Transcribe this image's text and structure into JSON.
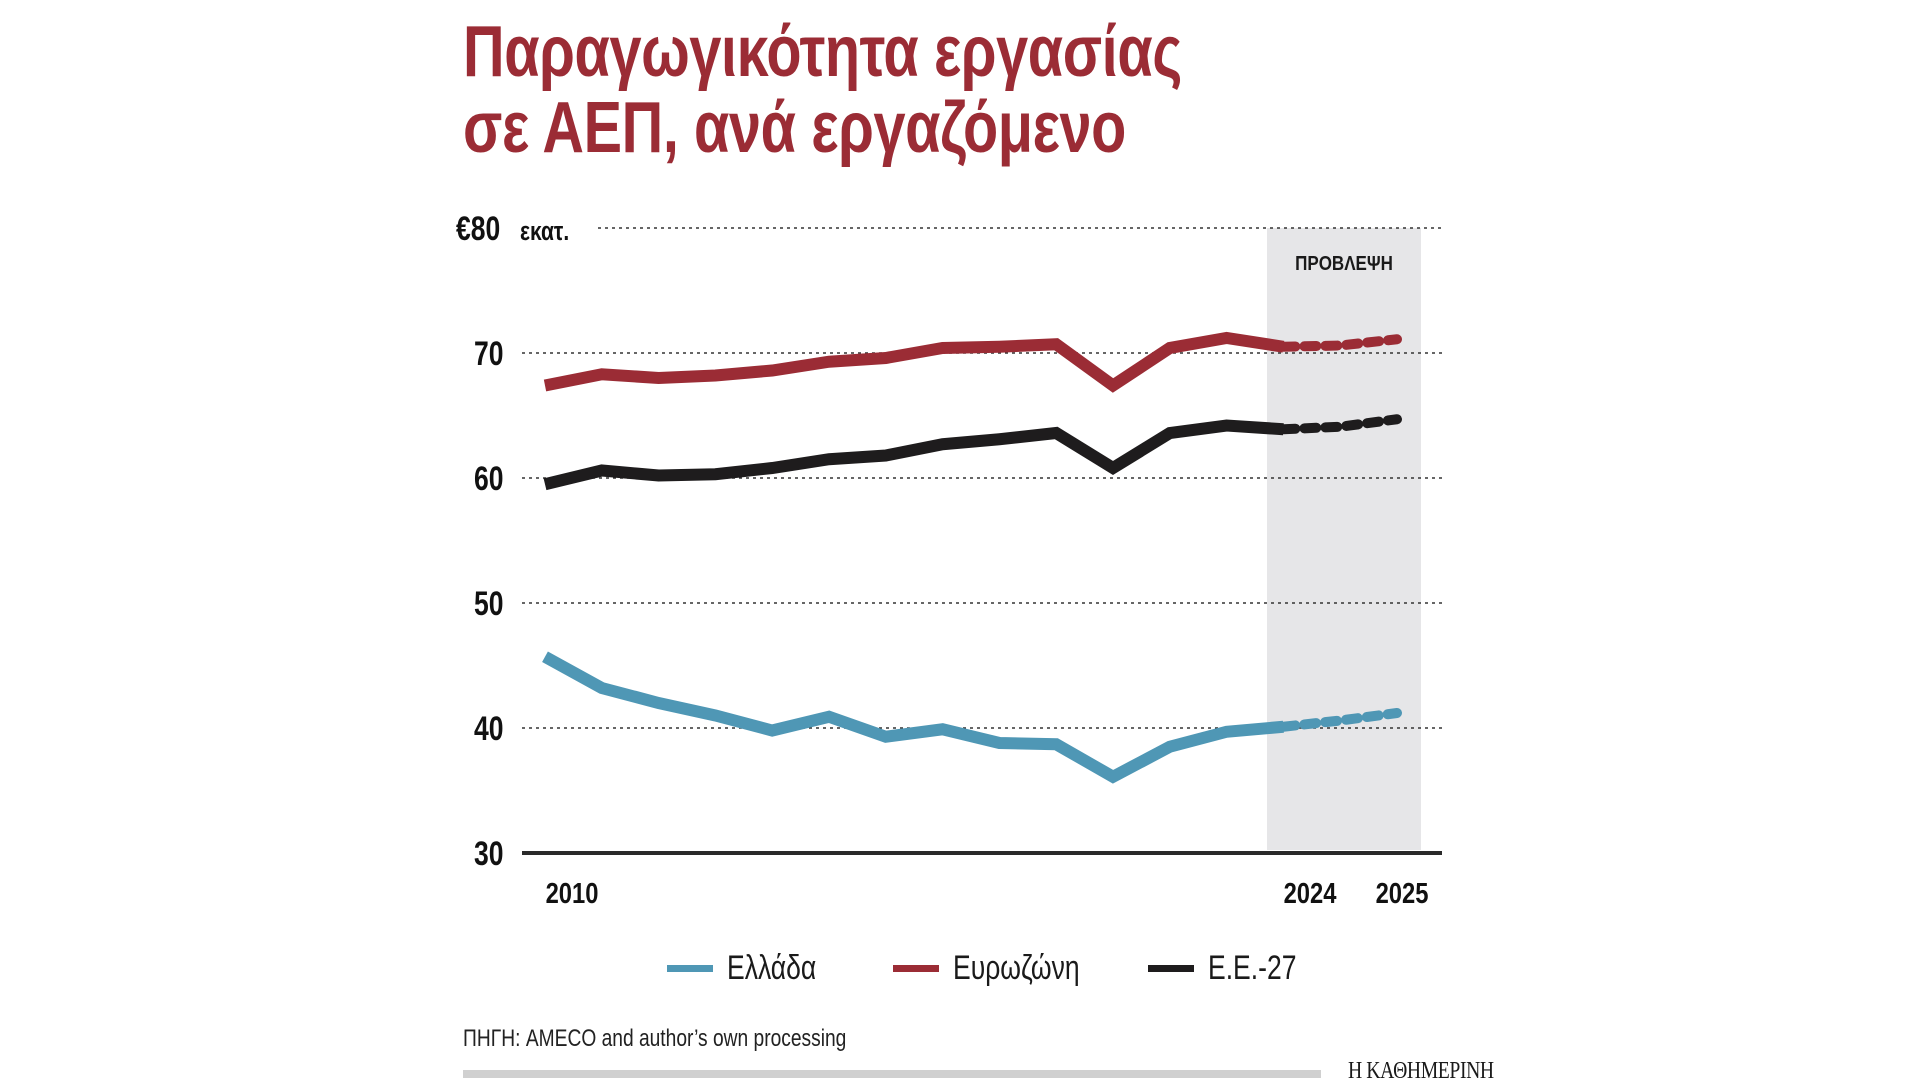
{
  "header": {
    "title_line1": "Παραγωγικότητα εργασίας",
    "title_line2": "σε ΑΕΠ, ανά εργαζόμενο"
  },
  "colors": {
    "title": "#9b2c35",
    "greece": "#4f97b5",
    "eurozone": "#9b2c35",
    "eu27": "#1e1c1d",
    "forecast_shade": "#e6e6e8",
    "grid": "#333333",
    "footer_bar": "#d0d0d0"
  },
  "chart_data": {
    "type": "line",
    "title": "Παραγωγικότητα εργασίας σε ΑΕΠ, ανά εργαζόμενο",
    "ylabel": "€80 εκατ.",
    "ylim": [
      30,
      80
    ],
    "yticks": [
      30,
      40,
      50,
      60,
      70,
      80
    ],
    "ytick_labels": [
      "30",
      "40",
      "50",
      "60",
      "70",
      "€80"
    ],
    "yunit_label": "εκατ.",
    "x": [
      2010,
      2011,
      2012,
      2013,
      2014,
      2015,
      2016,
      2017,
      2018,
      2019,
      2020,
      2021,
      2022,
      2023,
      2024,
      2025
    ],
    "xlim": [
      2010,
      2025
    ],
    "xtick_labels": [
      {
        "value": 2010,
        "label": "2010"
      },
      {
        "value": 2024,
        "label": "2024"
      },
      {
        "value": 2025,
        "label": "2025"
      }
    ],
    "grid": true,
    "forecast": {
      "label": "ΠΡΟΒΛΕΨΗ",
      "from": 2023,
      "to": 2025
    },
    "legend_position": "bottom",
    "series": [
      {
        "name": "Ελλάδα",
        "color": "#4f97b5",
        "values": [
          45.7,
          43.2,
          42.0,
          41.0,
          39.8,
          40.9,
          39.3,
          39.9,
          38.8,
          38.7,
          36.1,
          38.5,
          39.7,
          40.1,
          40.6,
          41.2
        ]
      },
      {
        "name": "Ευρωζώνη",
        "color": "#9b2c35",
        "values": [
          67.4,
          68.3,
          68.0,
          68.2,
          68.6,
          69.3,
          69.6,
          70.4,
          70.5,
          70.7,
          67.4,
          70.4,
          71.2,
          70.5,
          70.6,
          71.1
        ]
      },
      {
        "name": "Ε.Ε.-27",
        "color": "#1e1c1d",
        "values": [
          59.5,
          60.6,
          60.2,
          60.3,
          60.8,
          61.5,
          61.8,
          62.7,
          63.1,
          63.6,
          60.8,
          63.6,
          64.2,
          63.9,
          64.1,
          64.7
        ]
      }
    ],
    "actual_until": 2023
  },
  "legend": {
    "items": [
      {
        "label": "Ελλάδα",
        "color": "#4f97b5"
      },
      {
        "label": "Ευρωζώνη",
        "color": "#9b2c35"
      },
      {
        "label": "Ε.Ε.-27",
        "color": "#1e1c1d"
      }
    ]
  },
  "footer": {
    "source": "ΠΗΓΗ: AMECO and author’s own processing",
    "logo": "Η ΚΑΘΗΜΕΡΙΝΗ"
  }
}
